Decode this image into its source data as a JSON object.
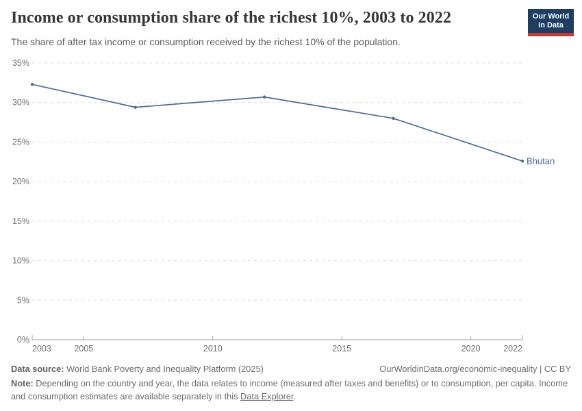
{
  "header": {
    "title": "Income or consumption share of the richest 10%, 2003 to 2022",
    "subtitle": "The share of after tax income or consumption received by the richest 10% of the population.",
    "logo": {
      "line1": "Our World",
      "line2": "in Data"
    }
  },
  "colors": {
    "line": "#4c6a9c",
    "grid": "#dcdcdc",
    "axis": "#a3a3a3",
    "tick_label": "#6e6e6e",
    "logo_bg": "#1d3d63",
    "logo_bar": "#c63a34"
  },
  "chart_data": {
    "type": "line",
    "title": "Income or consumption share of the richest 10%, 2003 to 2022",
    "xlabel": "",
    "ylabel": "",
    "xlim": [
      2003,
      2022
    ],
    "ylim": [
      0,
      35
    ],
    "grid": true,
    "legend_position": "end-of-line",
    "series": [
      {
        "name": "Bhutan",
        "x": [
          2003,
          2007,
          2012,
          2017,
          2022
        ],
        "values": [
          32.3,
          29.4,
          30.7,
          28.0,
          22.6
        ]
      }
    ],
    "yticks": [
      {
        "value": 0,
        "label": "0%"
      },
      {
        "value": 5,
        "label": "5%"
      },
      {
        "value": 10,
        "label": "10%"
      },
      {
        "value": 15,
        "label": "15%"
      },
      {
        "value": 20,
        "label": "20%"
      },
      {
        "value": 25,
        "label": "25%"
      },
      {
        "value": 30,
        "label": "30%"
      },
      {
        "value": 35,
        "label": "35%"
      }
    ],
    "xticks": [
      {
        "value": 2003,
        "label": "2003"
      },
      {
        "value": 2005,
        "label": "2005"
      },
      {
        "value": 2010,
        "label": "2010"
      },
      {
        "value": 2015,
        "label": "2015"
      },
      {
        "value": 2020,
        "label": "2020"
      },
      {
        "value": 2022,
        "label": "2022"
      }
    ]
  },
  "footer": {
    "source_label": "Data source:",
    "source_text": " World Bank Poverty and Inequality Platform (2025)",
    "attribution": "OurWorldinData.org/economic-inequality | CC BY",
    "note_label": "Note:",
    "note_before_link": " Depending on the country and year, the data relates to income (measured after taxes and benefits) or to consumption, per capita. Income and consumption estimates are available separately in this ",
    "note_link": "Data Explorer",
    "note_after_link": "."
  }
}
